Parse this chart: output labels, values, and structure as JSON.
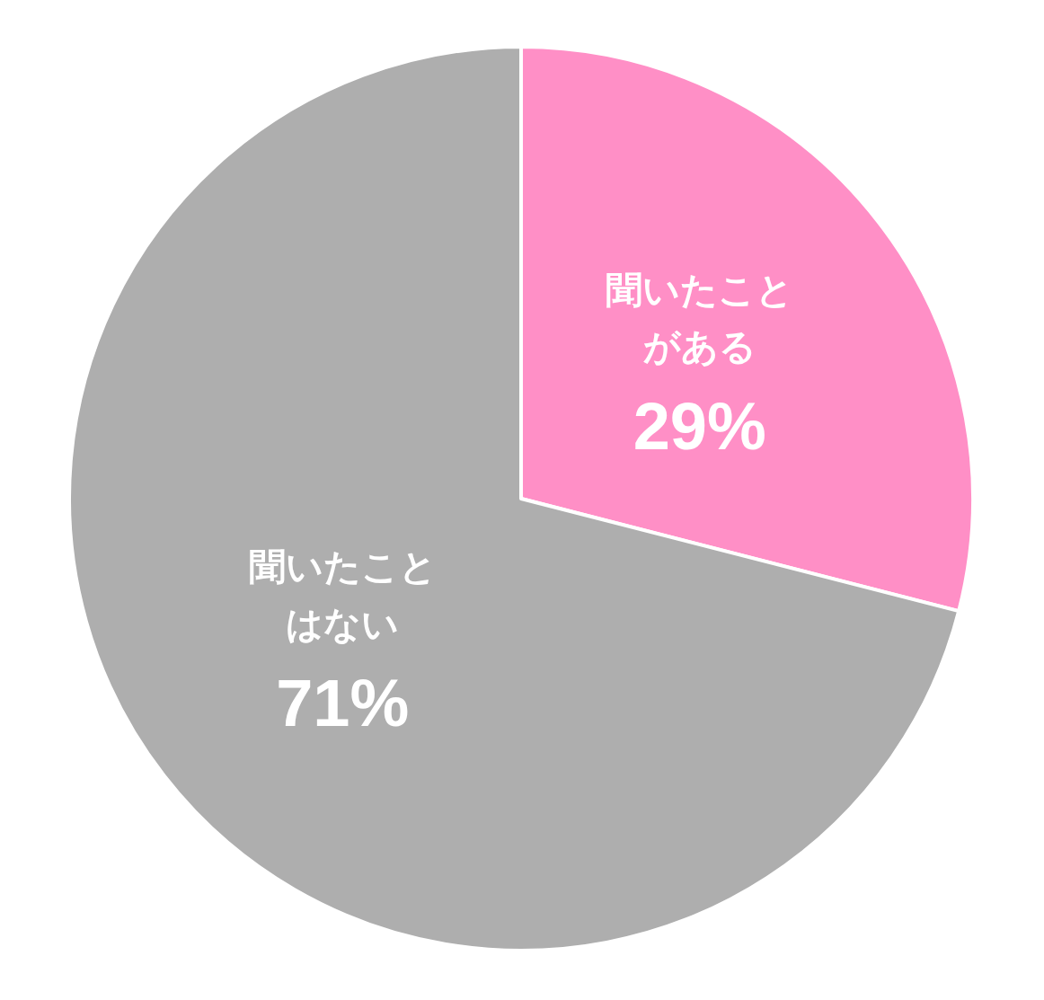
{
  "chart_data": {
    "type": "pie",
    "categories": [
      "聞いたことがある",
      "聞いたことはない"
    ],
    "values": [
      29,
      71
    ],
    "colors": [
      "#ff8fc6",
      "#aeaeae"
    ],
    "value_labels": [
      "29%",
      "71%"
    ]
  }
}
